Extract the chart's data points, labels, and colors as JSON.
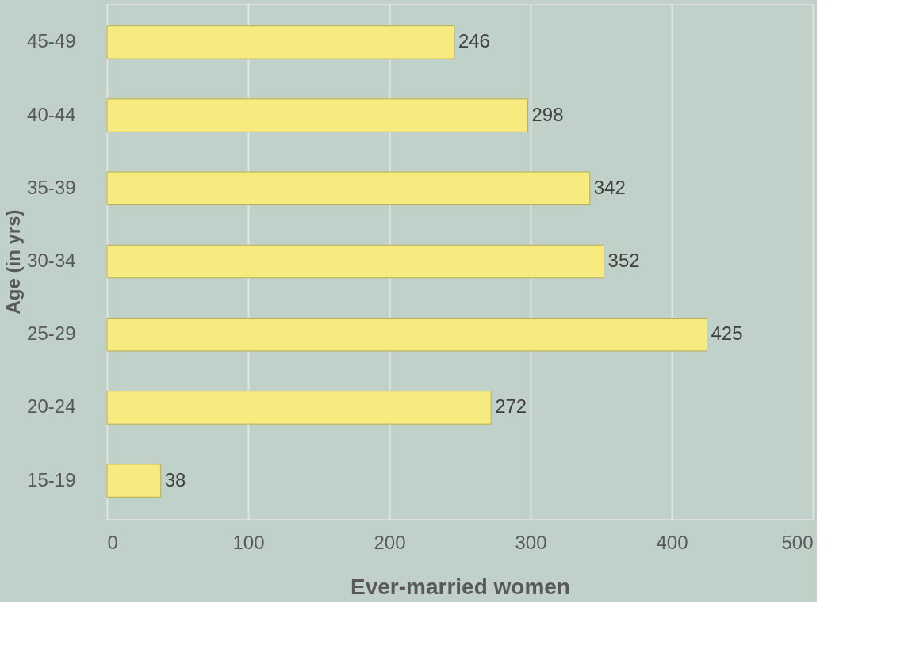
{
  "chart_data": {
    "type": "bar",
    "orientation": "horizontal",
    "xlabel": "Ever-married women",
    "ylabel": "Age (in yrs)",
    "categories": [
      "45-49",
      "40-44",
      "35-39",
      "30-34",
      "25-29",
      "20-24",
      "15-19"
    ],
    "values": [
      246,
      298,
      342,
      352,
      425,
      272,
      38
    ],
    "color": "#f7ea7e",
    "xlim": [
      0,
      500
    ],
    "xticks": [
      0,
      100,
      200,
      300,
      400,
      500
    ],
    "grid": "x",
    "data_labels": true
  }
}
